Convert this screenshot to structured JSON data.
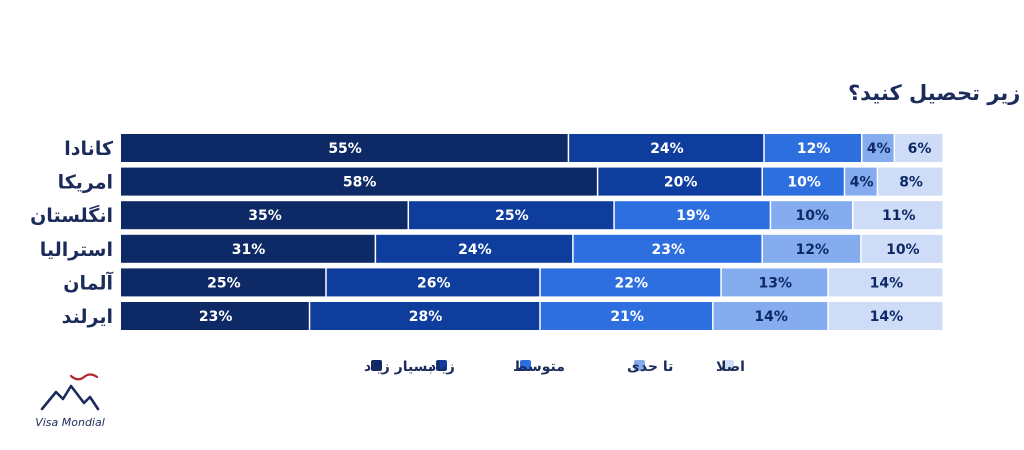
{
  "chart_data": {
    "type": "bar",
    "orientation": "horizontal-stacked",
    "title": "سوال نظرسنجی: تا چه میزان علاقه دارید در کشورهای زیر تحصیل کنید؟",
    "categories": [
      "کانادا",
      "امریکا",
      "انگلستان",
      "استرالیا",
      "آلمان",
      "ایرلند"
    ],
    "highlighted_category": "کانادا",
    "series": [
      {
        "name": "بسیار زیاد",
        "values": [
          55,
          58,
          35,
          31,
          25,
          23
        ]
      },
      {
        "name": "زیاد",
        "values": [
          24,
          20,
          25,
          24,
          26,
          28
        ]
      },
      {
        "name": "متوسط",
        "values": [
          12,
          10,
          19,
          23,
          22,
          21
        ]
      },
      {
        "name": "تا حدی",
        "values": [
          4,
          4,
          10,
          12,
          13,
          14
        ]
      },
      {
        "name": "اصلا",
        "values": [
          6,
          8,
          11,
          10,
          14,
          14
        ]
      }
    ],
    "value_suffix": "%",
    "xlim": [
      0,
      101
    ],
    "legend_position": "bottom",
    "grid": false
  },
  "colors": {
    "series": [
      "#0d2a66",
      "#0e3d9e",
      "#2e6fe0",
      "#85acef",
      "#cfdcf7"
    ],
    "label": [
      "#ffffff",
      "#ffffff",
      "#ffffff",
      "#0d2a66",
      "#0d2a66"
    ],
    "title": "#1b2b5a",
    "category": "#1b2b5a",
    "highlight": "#b3262e"
  },
  "branding": {
    "logo_icon": "mountain-logo-icon",
    "logo_text": "Visa Mondial"
  }
}
